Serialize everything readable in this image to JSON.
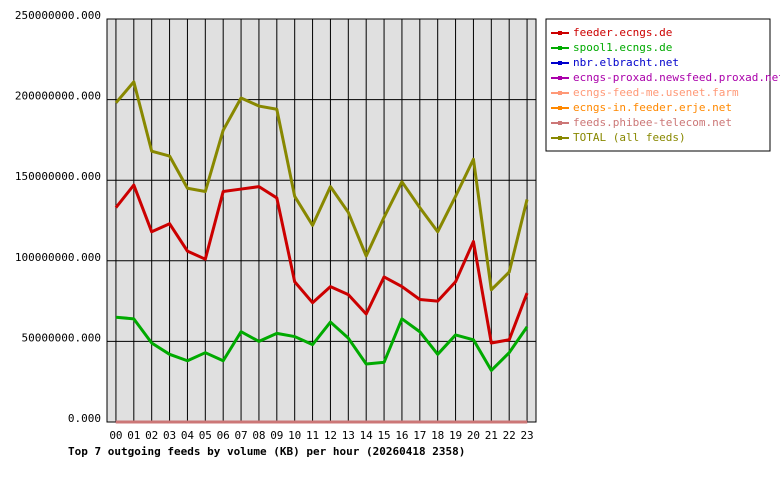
{
  "chart_data": {
    "type": "line",
    "title": "Top 7 outgoing feeds by volume (KB) per hour (20260418 2358)",
    "categories": [
      "00",
      "01",
      "02",
      "03",
      "04",
      "05",
      "06",
      "07",
      "08",
      "09",
      "10",
      "11",
      "12",
      "13",
      "14",
      "15",
      "16",
      "17",
      "18",
      "19",
      "20",
      "21",
      "22",
      "23"
    ],
    "series": [
      {
        "name": "feeder.ecngs.de",
        "color": "#cc0000",
        "values": [
          133000000,
          147000000,
          118000000,
          123000000,
          106000000,
          101000000,
          143000000,
          144500000,
          146000000,
          139000000,
          87000000,
          74000000,
          84000000,
          79000000,
          67000000,
          90000000,
          84000000,
          76000000,
          75000000,
          87000000,
          112000000,
          49000000,
          51000000,
          80000000
        ]
      },
      {
        "name": "spool1.ecngs.de",
        "color": "#00aa00",
        "values": [
          65000000,
          64000000,
          49000000,
          42000000,
          38000000,
          43000000,
          38000000,
          56000000,
          50000000,
          55000000,
          53000000,
          48000000,
          62000000,
          52000000,
          36000000,
          37000000,
          64000000,
          56000000,
          42000000,
          54000000,
          51000000,
          32000000,
          43000000,
          59000000
        ]
      },
      {
        "name": "nbr.elbracht.net",
        "color": "#0000cc",
        "values": [
          0,
          0,
          0,
          0,
          0,
          0,
          0,
          0,
          0,
          0,
          0,
          0,
          0,
          0,
          0,
          0,
          0,
          0,
          0,
          0,
          0,
          0,
          0,
          0
        ]
      },
      {
        "name": "ecngs-proxad.newsfeed.proxad.net",
        "color": "#aa00aa",
        "values": [
          0,
          0,
          0,
          0,
          0,
          0,
          0,
          0,
          0,
          0,
          0,
          0,
          0,
          0,
          0,
          0,
          0,
          0,
          0,
          0,
          0,
          0,
          0,
          0
        ]
      },
      {
        "name": "ecngs-feed-me.usenet.farm",
        "color": "#ff9977",
        "values": [
          0,
          0,
          0,
          0,
          0,
          0,
          0,
          0,
          0,
          0,
          0,
          0,
          0,
          0,
          0,
          0,
          0,
          0,
          0,
          0,
          0,
          0,
          0,
          0
        ]
      },
      {
        "name": "ecngs-in.feeder.erje.net",
        "color": "#ff8800",
        "values": [
          0,
          0,
          0,
          0,
          0,
          0,
          0,
          0,
          0,
          0,
          0,
          0,
          0,
          0,
          0,
          0,
          0,
          0,
          0,
          0,
          0,
          0,
          0,
          0
        ]
      },
      {
        "name": "feeds.phibee-telecom.net",
        "color": "#cc7777",
        "values": [
          0,
          0,
          0,
          0,
          0,
          0,
          0,
          0,
          0,
          0,
          0,
          0,
          0,
          0,
          0,
          0,
          0,
          0,
          0,
          0,
          0,
          0,
          0,
          0
        ]
      },
      {
        "name": "TOTAL (all feeds)",
        "color": "#888800",
        "values": [
          198000000,
          211000000,
          168000000,
          165000000,
          145000000,
          143000000,
          181000000,
          201000000,
          196000000,
          194000000,
          140000000,
          122000000,
          146000000,
          130000000,
          103000000,
          127000000,
          149000000,
          133000000,
          118000000,
          140000000,
          163000000,
          82000000,
          93000000,
          138000000
        ]
      }
    ],
    "ylim": [
      0,
      250000000
    ],
    "yticks": [
      {
        "value": 0,
        "label": "0.000"
      },
      {
        "value": 50000000,
        "label": "50000000.000"
      },
      {
        "value": 100000000,
        "label": "100000000.000"
      },
      {
        "value": 150000000,
        "label": "150000000.000"
      },
      {
        "value": 200000000,
        "label": "200000000.000"
      },
      {
        "value": 250000000,
        "label": "250000000.000"
      }
    ],
    "grid": true,
    "legend": "right"
  }
}
